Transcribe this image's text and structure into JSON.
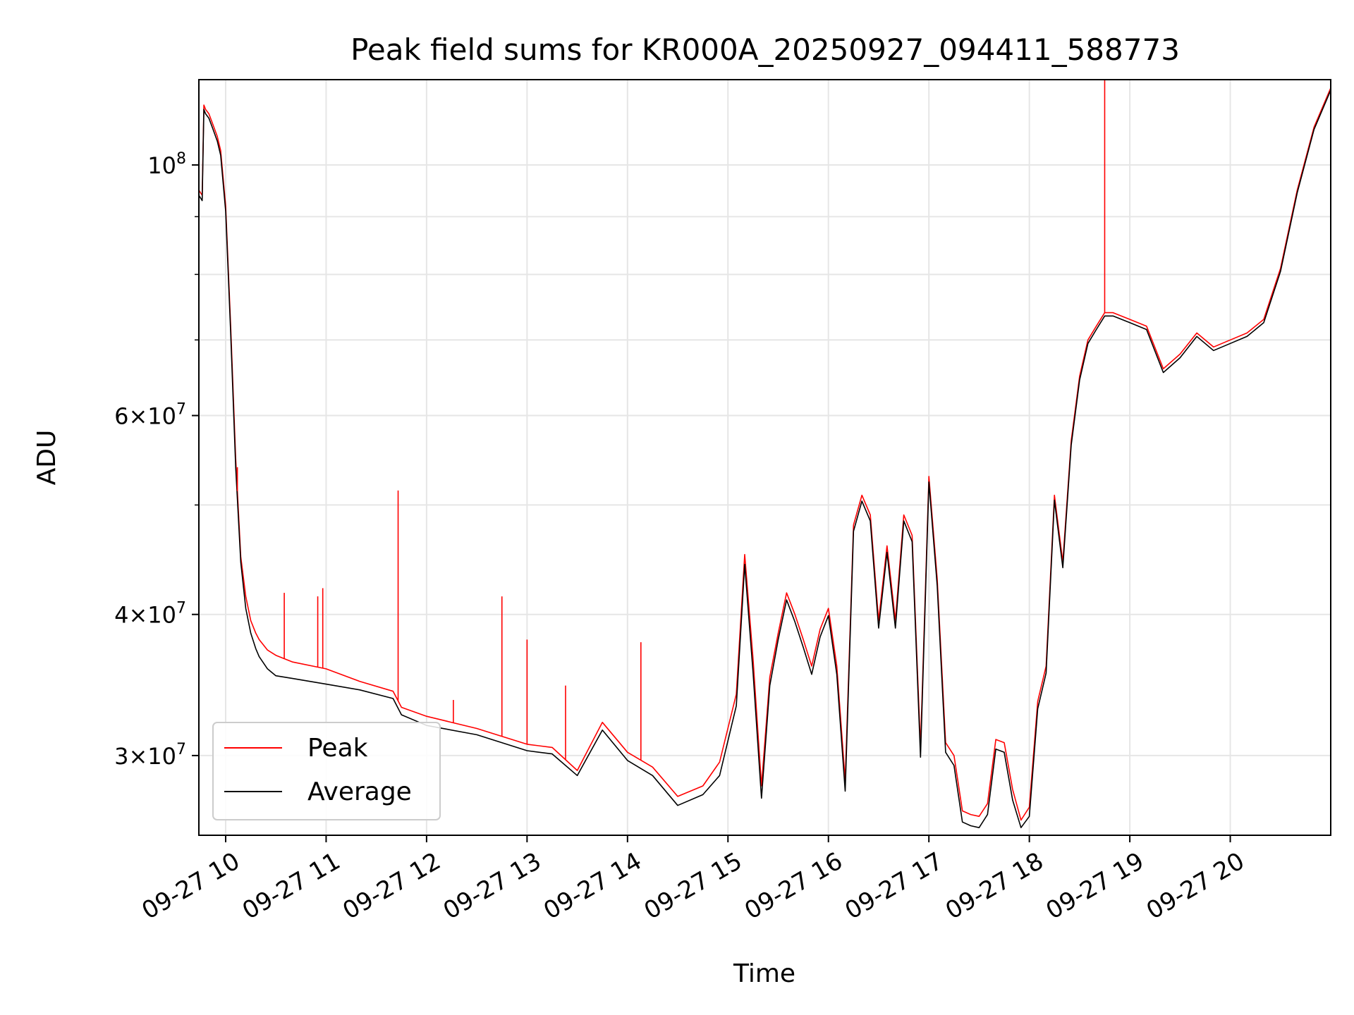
{
  "chart_data": {
    "type": "line",
    "title": "Peak field sums for KR000A_20250927_094411_588773",
    "xlabel": "Time",
    "ylabel": "ADU",
    "xscale": "time",
    "yscale": "log",
    "xlim": [
      "2025-09-27 09:44",
      "2025-09-27 21:00"
    ],
    "ylim": [
      25500000,
      119000000
    ],
    "grid": true,
    "legend_position": "lower-left",
    "x_ticks": [
      {
        "t": "2025-09-27 10:00",
        "label": "09-27 10"
      },
      {
        "t": "2025-09-27 11:00",
        "label": "09-27 11"
      },
      {
        "t": "2025-09-27 12:00",
        "label": "09-27 12"
      },
      {
        "t": "2025-09-27 13:00",
        "label": "09-27 13"
      },
      {
        "t": "2025-09-27 14:00",
        "label": "09-27 14"
      },
      {
        "t": "2025-09-27 15:00",
        "label": "09-27 15"
      },
      {
        "t": "2025-09-27 16:00",
        "label": "09-27 16"
      },
      {
        "t": "2025-09-27 17:00",
        "label": "09-27 17"
      },
      {
        "t": "2025-09-27 18:00",
        "label": "09-27 18"
      },
      {
        "t": "2025-09-27 19:00",
        "label": "09-27 19"
      },
      {
        "t": "2025-09-27 20:00",
        "label": "09-27 20"
      }
    ],
    "y_ticks": [
      {
        "v": 30000000,
        "base": "3",
        "exp": "7"
      },
      {
        "v": 40000000,
        "base": "4",
        "exp": "7"
      },
      {
        "v": 60000000,
        "base": "6",
        "exp": "7"
      },
      {
        "v": 100000000,
        "base": "",
        "exp": "8"
      }
    ],
    "y_minor_ticks": [
      50000000,
      70000000,
      80000000,
      90000000
    ],
    "series": [
      {
        "name": "Peak",
        "color": "#ff0000",
        "x": [
          "2025-09-27 09:44",
          "2025-09-27 09:46",
          "2025-09-27 09:47",
          "2025-09-27 09:48",
          "2025-09-27 09:50",
          "2025-09-27 09:52",
          "2025-09-27 09:55",
          "2025-09-27 09:57",
          "2025-09-27 10:00",
          "2025-09-27 10:03",
          "2025-09-27 10:06",
          "2025-09-27 10:09",
          "2025-09-27 10:12",
          "2025-09-27 10:15",
          "2025-09-27 10:18",
          "2025-09-27 10:20",
          "2025-09-27 10:25",
          "2025-09-27 10:30",
          "2025-09-27 10:40",
          "2025-09-27 11:00",
          "2025-09-27 11:20",
          "2025-09-27 11:40",
          "2025-09-27 11:45",
          "2025-09-27 12:00",
          "2025-09-27 12:30",
          "2025-09-27 13:00",
          "2025-09-27 13:15",
          "2025-09-27 13:30",
          "2025-09-27 13:45",
          "2025-09-27 14:00",
          "2025-09-27 14:15",
          "2025-09-27 14:30",
          "2025-09-27 14:45",
          "2025-09-27 14:55",
          "2025-09-27 15:05",
          "2025-09-27 15:10",
          "2025-09-27 15:15",
          "2025-09-27 15:20",
          "2025-09-27 15:25",
          "2025-09-27 15:30",
          "2025-09-27 15:35",
          "2025-09-27 15:40",
          "2025-09-27 15:45",
          "2025-09-27 15:50",
          "2025-09-27 15:55",
          "2025-09-27 16:00",
          "2025-09-27 16:05",
          "2025-09-27 16:10",
          "2025-09-27 16:15",
          "2025-09-27 16:20",
          "2025-09-27 16:25",
          "2025-09-27 16:30",
          "2025-09-27 16:35",
          "2025-09-27 16:40",
          "2025-09-27 16:45",
          "2025-09-27 16:50",
          "2025-09-27 16:55",
          "2025-09-27 17:00",
          "2025-09-27 17:05",
          "2025-09-27 17:10",
          "2025-09-27 17:15",
          "2025-09-27 17:20",
          "2025-09-27 17:25",
          "2025-09-27 17:30",
          "2025-09-27 17:35",
          "2025-09-27 17:40",
          "2025-09-27 17:45",
          "2025-09-27 17:50",
          "2025-09-27 17:55",
          "2025-09-27 18:00",
          "2025-09-27 18:05",
          "2025-09-27 18:10",
          "2025-09-27 18:15",
          "2025-09-27 18:20",
          "2025-09-27 18:25",
          "2025-09-27 18:30",
          "2025-09-27 18:35",
          "2025-09-27 18:40",
          "2025-09-27 18:45",
          "2025-09-27 18:50",
          "2025-09-27 19:00",
          "2025-09-27 19:10",
          "2025-09-27 19:20",
          "2025-09-27 19:30",
          "2025-09-27 19:40",
          "2025-09-27 19:50",
          "2025-09-27 20:00",
          "2025-09-27 20:10",
          "2025-09-27 20:20",
          "2025-09-27 20:30",
          "2025-09-27 20:40",
          "2025-09-27 20:50",
          "2025-09-27 21:00"
        ],
        "y": [
          95000000,
          94000000,
          113000000,
          112000000,
          111000000,
          109000000,
          106000000,
          103000000,
          92000000,
          72000000,
          55000000,
          45000000,
          41500000,
          39500000,
          38500000,
          38000000,
          37200000,
          36800000,
          36300000,
          35800000,
          34900000,
          34200000,
          33100000,
          32500000,
          31700000,
          30700000,
          30500000,
          29100000,
          32100000,
          30200000,
          29300000,
          27600000,
          28200000,
          29600000,
          34000000,
          45200000,
          36500000,
          28200000,
          35200000,
          38500000,
          41800000,
          40000000,
          38000000,
          36000000,
          38800000,
          40500000,
          36000000,
          28500000,
          48000000,
          51000000,
          49000000,
          39500000,
          46000000,
          39500000,
          49000000,
          47000000,
          30500000,
          53000000,
          43000000,
          30800000,
          30000000,
          26800000,
          26600000,
          26500000,
          27200000,
          31000000,
          30800000,
          28000000,
          26300000,
          27000000,
          33500000,
          36000000,
          51000000,
          44500000,
          57000000,
          65000000,
          70000000,
          72000000,
          74000000,
          74000000,
          73000000,
          72000000,
          66000000,
          68000000,
          71000000,
          69000000,
          70000000,
          71000000,
          73000000,
          81000000,
          95000000,
          108000000,
          117000000
        ]
      },
      {
        "name": "Average",
        "color": "#000000",
        "x": [
          "2025-09-27 09:44",
          "2025-09-27 09:46",
          "2025-09-27 09:47",
          "2025-09-27 09:48",
          "2025-09-27 09:50",
          "2025-09-27 09:52",
          "2025-09-27 09:55",
          "2025-09-27 09:57",
          "2025-09-27 10:00",
          "2025-09-27 10:03",
          "2025-09-27 10:06",
          "2025-09-27 10:09",
          "2025-09-27 10:12",
          "2025-09-27 10:15",
          "2025-09-27 10:18",
          "2025-09-27 10:20",
          "2025-09-27 10:25",
          "2025-09-27 10:30",
          "2025-09-27 10:40",
          "2025-09-27 11:00",
          "2025-09-27 11:20",
          "2025-09-27 11:40",
          "2025-09-27 11:45",
          "2025-09-27 12:00",
          "2025-09-27 12:30",
          "2025-09-27 13:00",
          "2025-09-27 13:15",
          "2025-09-27 13:30",
          "2025-09-27 13:45",
          "2025-09-27 14:00",
          "2025-09-27 14:15",
          "2025-09-27 14:30",
          "2025-09-27 14:45",
          "2025-09-27 14:55",
          "2025-09-27 15:05",
          "2025-09-27 15:10",
          "2025-09-27 15:15",
          "2025-09-27 15:20",
          "2025-09-27 15:25",
          "2025-09-27 15:30",
          "2025-09-27 15:35",
          "2025-09-27 15:40",
          "2025-09-27 15:45",
          "2025-09-27 15:50",
          "2025-09-27 15:55",
          "2025-09-27 16:00",
          "2025-09-27 16:05",
          "2025-09-27 16:10",
          "2025-09-27 16:15",
          "2025-09-27 16:20",
          "2025-09-27 16:25",
          "2025-09-27 16:30",
          "2025-09-27 16:35",
          "2025-09-27 16:40",
          "2025-09-27 16:45",
          "2025-09-27 16:50",
          "2025-09-27 16:55",
          "2025-09-27 17:00",
          "2025-09-27 17:05",
          "2025-09-27 17:10",
          "2025-09-27 17:15",
          "2025-09-27 17:20",
          "2025-09-27 17:25",
          "2025-09-27 17:30",
          "2025-09-27 17:35",
          "2025-09-27 17:40",
          "2025-09-27 17:45",
          "2025-09-27 17:50",
          "2025-09-27 17:55",
          "2025-09-27 18:00",
          "2025-09-27 18:05",
          "2025-09-27 18:10",
          "2025-09-27 18:15",
          "2025-09-27 18:20",
          "2025-09-27 18:25",
          "2025-09-27 18:30",
          "2025-09-27 18:35",
          "2025-09-27 18:40",
          "2025-09-27 18:45",
          "2025-09-27 18:50",
          "2025-09-27 19:00",
          "2025-09-27 19:10",
          "2025-09-27 19:20",
          "2025-09-27 19:30",
          "2025-09-27 19:40",
          "2025-09-27 19:50",
          "2025-09-27 20:00",
          "2025-09-27 20:10",
          "2025-09-27 20:20",
          "2025-09-27 20:30",
          "2025-09-27 20:40",
          "2025-09-27 20:50",
          "2025-09-27 21:00"
        ],
        "y": [
          94000000,
          93000000,
          112000000,
          111000000,
          110000000,
          108000000,
          105000000,
          102000000,
          91000000,
          71000000,
          54000000,
          44500000,
          40500000,
          38500000,
          37300000,
          36700000,
          35800000,
          35300000,
          35100000,
          34700000,
          34300000,
          33700000,
          32600000,
          31900000,
          31300000,
          30300000,
          30100000,
          28800000,
          31600000,
          29700000,
          28800000,
          27100000,
          27700000,
          28800000,
          33200000,
          44300000,
          35500000,
          27500000,
          34600000,
          38000000,
          41200000,
          39400000,
          37400000,
          35400000,
          38200000,
          39900000,
          35400000,
          27900000,
          47400000,
          50400000,
          48400000,
          38900000,
          45400000,
          38900000,
          48400000,
          46400000,
          29900000,
          52400000,
          42400000,
          30200000,
          29400000,
          26200000,
          26000000,
          25900000,
          26600000,
          30400000,
          30200000,
          27400000,
          25900000,
          26500000,
          33000000,
          35500000,
          50500000,
          44000000,
          56500000,
          64500000,
          69500000,
          71500000,
          73500000,
          73500000,
          72500000,
          71500000,
          65500000,
          67500000,
          70500000,
          68500000,
          69500000,
          70500000,
          72500000,
          80500000,
          94500000,
          107500000,
          116500000
        ]
      }
    ],
    "spikes": [
      {
        "series": "Peak",
        "t": "2025-09-27 10:07",
        "value": 54000000
      },
      {
        "series": "Peak",
        "t": "2025-09-27 10:35",
        "value": 41800000
      },
      {
        "series": "Peak",
        "t": "2025-09-27 10:55",
        "value": 41500000
      },
      {
        "series": "Peak",
        "t": "2025-09-27 10:58",
        "value": 42200000
      },
      {
        "series": "Peak",
        "t": "2025-09-27 11:43",
        "value": 51500000
      },
      {
        "series": "Peak",
        "t": "2025-09-27 12:16",
        "value": 33600000
      },
      {
        "series": "Peak",
        "t": "2025-09-27 12:45",
        "value": 41500000
      },
      {
        "series": "Peak",
        "t": "2025-09-27 13:00",
        "value": 38000000
      },
      {
        "series": "Peak",
        "t": "2025-09-27 13:23",
        "value": 34600000
      },
      {
        "series": "Peak",
        "t": "2025-09-27 14:08",
        "value": 37800000
      },
      {
        "series": "Peak",
        "t": "2025-09-27 18:45",
        "value": 119000000
      }
    ]
  },
  "legend": {
    "items": [
      {
        "label": "Peak",
        "color": "#ff0000"
      },
      {
        "label": "Average",
        "color": "#000000"
      }
    ]
  }
}
